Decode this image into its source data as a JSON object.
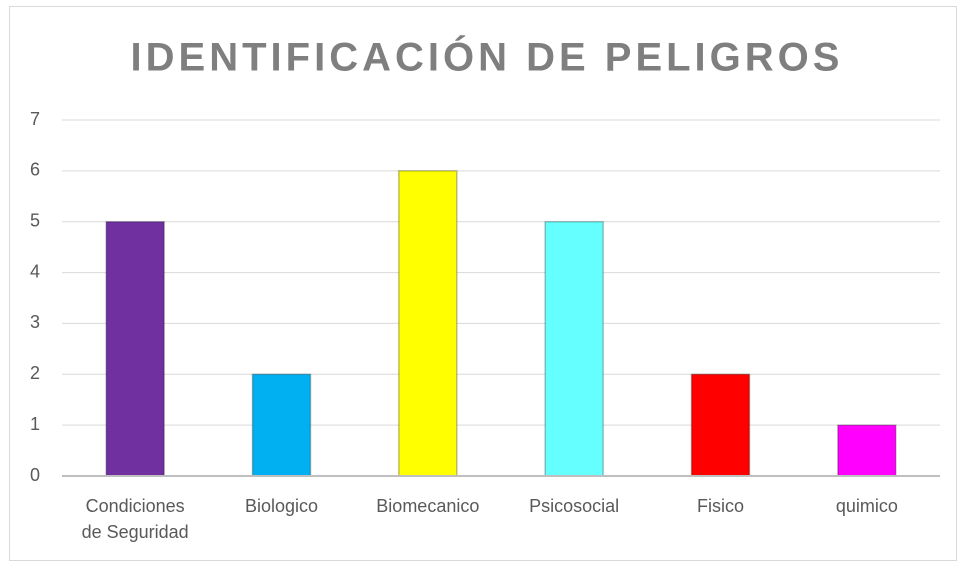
{
  "chart_data": {
    "type": "bar",
    "title": "IDENTIFICACIÓN DE PELIGROS",
    "categories": [
      "Condiciones de Seguridad",
      "Biologico",
      "Biomecanico",
      "Psicosocial",
      "Fisico",
      "quimico"
    ],
    "values": [
      5,
      2,
      6,
      5,
      2,
      1
    ],
    "colors": [
      "#7030a0",
      "#00b0f0",
      "#ffff00",
      "#66ffff",
      "#ff0000",
      "#ff00ff"
    ],
    "ylim": [
      0,
      7
    ],
    "yticks": [
      0,
      1,
      2,
      3,
      4,
      5,
      6,
      7
    ],
    "grid": true
  }
}
